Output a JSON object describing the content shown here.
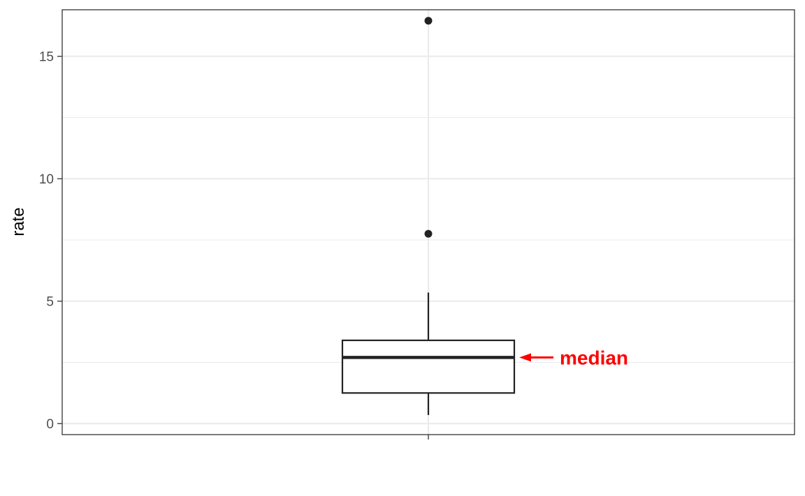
{
  "chart_data": {
    "type": "boxplot",
    "ylabel": "rate",
    "xlabel": "",
    "ylim": [
      -0.45,
      16.9
    ],
    "yticks": [
      0,
      5,
      10,
      15
    ],
    "ytick_labels": [
      "0",
      "5",
      "10",
      "15"
    ],
    "grid": true,
    "legend": "none",
    "box": {
      "min": 0.35,
      "q1": 1.25,
      "median": 2.7,
      "q3": 3.4,
      "max": 5.35,
      "outliers": [
        7.75,
        16.45
      ]
    },
    "annotation": {
      "text": "median",
      "color": "#ff0000",
      "points_to": "median"
    }
  }
}
